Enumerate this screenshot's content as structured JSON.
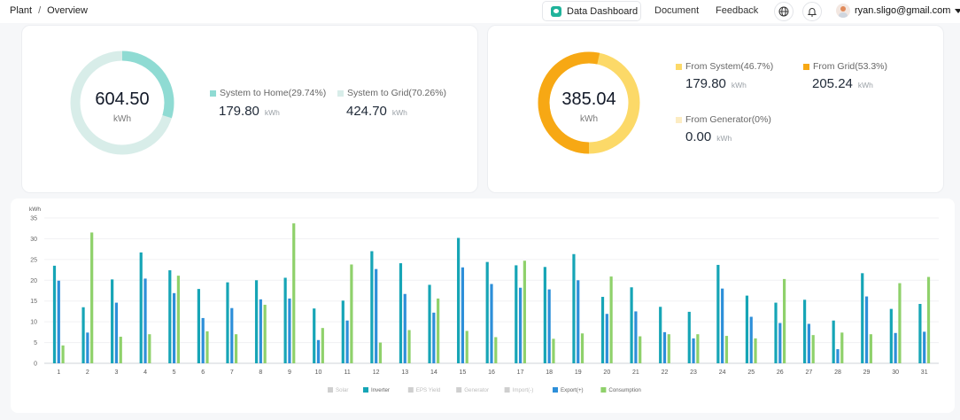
{
  "header": {
    "breadcrumb": [
      "Plant",
      "Overview"
    ],
    "dashboard_label": "Data Dashboard",
    "document_label": "Document",
    "feedback_label": "Feedback",
    "user_email": "ryan.sligo@gmail.com"
  },
  "production": {
    "total": "604.50",
    "unit": "kWh",
    "colors": {
      "home": "#8fdbd3",
      "grid": "#d8ede9"
    },
    "items": [
      {
        "label": "System to Home(29.74%)",
        "value": "179.80",
        "unit": "kWh",
        "share": 0.2974
      },
      {
        "label": "System to Grid(70.26%)",
        "value": "424.70",
        "unit": "kWh",
        "share": 0.7026
      }
    ]
  },
  "consumption": {
    "total": "385.04",
    "unit": "kWh",
    "colors": {
      "system": "#fcd968",
      "grid": "#f7a814",
      "generator": "#fcecc2"
    },
    "items": [
      {
        "label": "From System(46.7%)",
        "value": "179.80",
        "unit": "kWh",
        "share": 0.467
      },
      {
        "label": "From Grid(53.3%)",
        "value": "205.24",
        "unit": "kWh",
        "share": 0.533
      },
      {
        "label": "From Generator(0%)",
        "value": "0.00",
        "unit": "kWh",
        "share": 0
      }
    ]
  },
  "chart_data": {
    "type": "bar",
    "ylabel": "kWh",
    "ylim": [
      0,
      35
    ],
    "yticks": [
      0,
      5,
      10,
      15,
      20,
      25,
      30,
      35
    ],
    "categories": [
      "1",
      "2",
      "3",
      "4",
      "5",
      "6",
      "7",
      "8",
      "9",
      "10",
      "11",
      "12",
      "13",
      "14",
      "15",
      "16",
      "17",
      "18",
      "19",
      "20",
      "21",
      "22",
      "23",
      "24",
      "25",
      "26",
      "27",
      "28",
      "29",
      "30",
      "31"
    ],
    "series": [
      {
        "name": "Inverter",
        "color": "#16a5b6",
        "values": [
          23.5,
          13.5,
          20.2,
          26.7,
          22.4,
          17.9,
          19.5,
          20.0,
          20.6,
          13.2,
          15.1,
          27.0,
          24.1,
          18.9,
          30.2,
          24.4,
          23.6,
          23.2,
          26.3,
          16.0,
          18.3,
          13.6,
          12.4,
          23.7,
          16.3,
          14.6,
          15.3,
          10.3,
          21.7,
          13.1,
          14.3
        ]
      },
      {
        "name": "Export(+)",
        "color": "#2d8fd9",
        "values": [
          19.9,
          7.4,
          14.6,
          20.4,
          16.9,
          10.9,
          13.3,
          15.4,
          15.6,
          5.6,
          10.3,
          22.7,
          16.7,
          12.2,
          23.1,
          19.1,
          18.2,
          17.8,
          20.0,
          11.9,
          12.5,
          7.5,
          6.0,
          18.0,
          11.2,
          9.7,
          9.5,
          3.4,
          16.1,
          7.3,
          7.6
        ]
      },
      {
        "name": "Consumption",
        "color": "#8fd16b",
        "values": [
          4.3,
          31.5,
          6.4,
          7.0,
          21.1,
          7.7,
          7.0,
          14.1,
          33.7,
          8.5,
          23.8,
          5.0,
          8.0,
          15.6,
          7.8,
          6.3,
          24.7,
          5.9,
          7.2,
          20.9,
          6.5,
          7.0,
          7.0,
          6.6,
          6.0,
          20.3,
          6.8,
          7.4,
          7.0,
          19.3,
          20.8
        ]
      }
    ],
    "legend": [
      {
        "name": "Solar",
        "color": "#cfcfcf"
      },
      {
        "name": "Inverter",
        "color": "#16a5b6"
      },
      {
        "name": "EPS Yield",
        "color": "#cfcfcf"
      },
      {
        "name": "Generator",
        "color": "#cfcfcf"
      },
      {
        "name": "Import(-)",
        "color": "#cfcfcf"
      },
      {
        "name": "Export(+)",
        "color": "#2d8fd9"
      },
      {
        "name": "Consumption",
        "color": "#8fd16b"
      }
    ],
    "legend_position": "bottom-center",
    "grid": true
  }
}
